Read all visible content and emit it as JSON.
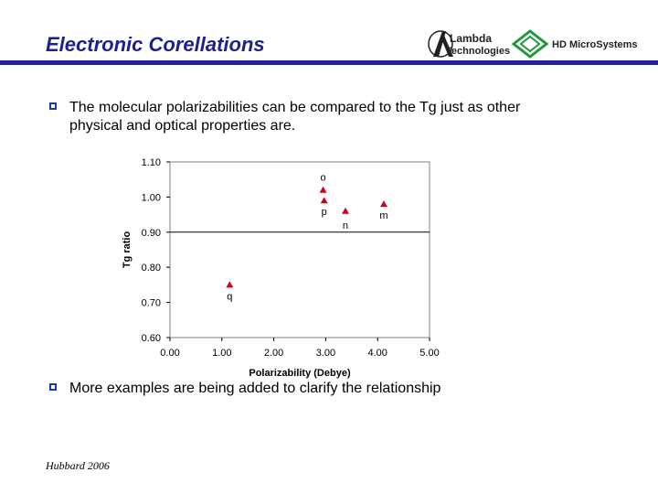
{
  "title": "Electronic Corellations",
  "logos": {
    "lambda_line1": "Lambda",
    "lambda_line2": "Technologies",
    "hd": "HD MicroSystems"
  },
  "bullets": [
    "The molecular polarizabilities can be compared to the Tg just as other physical and optical properties are.",
    "More examples are being added to clarify the relationship"
  ],
  "footer": "Hubbard 2006",
  "colors": {
    "title": "#1f1f8f",
    "rule": "#23238f",
    "marker": "#d0021b",
    "bullet_box": "#1f3aa8"
  },
  "chart_data": {
    "type": "scatter",
    "xlabel": "Polarizability (Debye)",
    "ylabel": "Tg ratio",
    "xlim": [
      0.0,
      5.0
    ],
    "ylim": [
      0.6,
      1.1
    ],
    "xticks": [
      "0.00",
      "1.00",
      "2.00",
      "3.00",
      "4.00",
      "5.00"
    ],
    "yticks": [
      "0.60",
      "0.70",
      "0.80",
      "0.90",
      "1.00",
      "1.10"
    ],
    "reference_line_y": 0.9,
    "grid": false,
    "points": [
      {
        "label": "o",
        "x": 2.95,
        "y": 1.02
      },
      {
        "label": "p",
        "x": 2.97,
        "y": 0.99
      },
      {
        "label": "n",
        "x": 3.38,
        "y": 0.96
      },
      {
        "label": "m",
        "x": 4.12,
        "y": 0.98
      },
      {
        "label": "q",
        "x": 1.15,
        "y": 0.75
      }
    ]
  }
}
